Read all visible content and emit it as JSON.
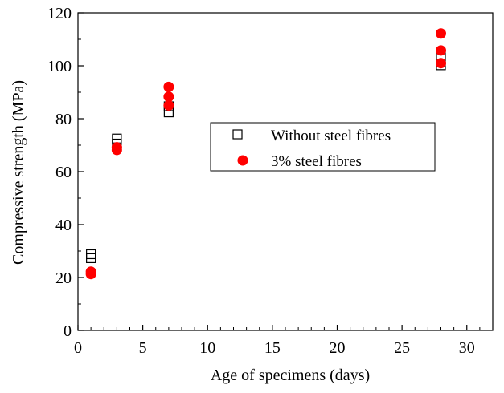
{
  "chart_data": {
    "type": "scatter",
    "title": "",
    "xlabel": "Age of specimens (days)",
    "ylabel": "Compressive strength (MPa)",
    "xlim": [
      0,
      32
    ],
    "ylim": [
      0,
      120
    ],
    "x_ticks": [
      0,
      5,
      10,
      15,
      20,
      25,
      30
    ],
    "y_ticks": [
      0,
      20,
      40,
      60,
      80,
      100,
      120
    ],
    "x_minor_step": 1,
    "y_minor_step": 10,
    "grid": false,
    "legend_position": "center",
    "series": [
      {
        "name": "Without steel fibres",
        "marker": "open-square",
        "color": "#000000",
        "points": [
          {
            "x": 1,
            "y": 28.8
          },
          {
            "x": 1,
            "y": 27.3
          },
          {
            "x": 3,
            "y": 72.5
          },
          {
            "x": 3,
            "y": 70.6
          },
          {
            "x": 7,
            "y": 84.7
          },
          {
            "x": 7,
            "y": 82.4
          },
          {
            "x": 28,
            "y": 103.5
          },
          {
            "x": 28,
            "y": 100.2
          }
        ]
      },
      {
        "name": "3% steel fibres",
        "marker": "filled-circle",
        "color": "#ff0000",
        "points": [
          {
            "x": 1,
            "y": 22.2
          },
          {
            "x": 1,
            "y": 21.3
          },
          {
            "x": 3,
            "y": 69.2
          },
          {
            "x": 3,
            "y": 68.2
          },
          {
            "x": 7,
            "y": 92.0
          },
          {
            "x": 7,
            "y": 88.3
          },
          {
            "x": 7,
            "y": 85.0
          },
          {
            "x": 28,
            "y": 112.2
          },
          {
            "x": 28,
            "y": 105.8
          },
          {
            "x": 28,
            "y": 101.0
          }
        ]
      }
    ]
  }
}
